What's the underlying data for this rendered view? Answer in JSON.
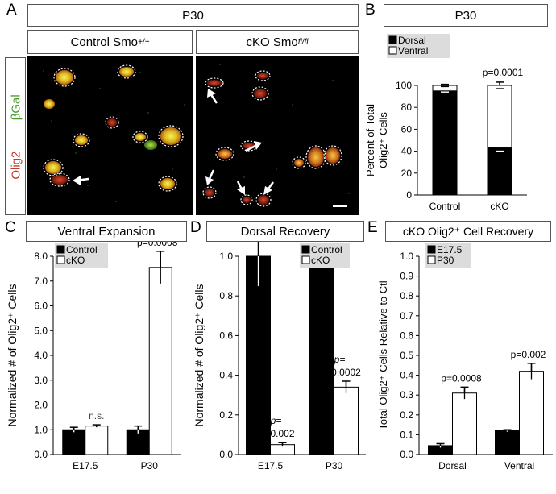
{
  "figure": {
    "panels": {
      "a": {
        "letter": "A",
        "age": "P30",
        "control_title": "Control Smo",
        "control_sup": "+/+",
        "cko_title": "cKO Smo",
        "cko_sup": "fl/fl",
        "marker_green": "βGal",
        "marker_red": "Olig2"
      },
      "b": {
        "letter": "B",
        "title": "P30"
      },
      "c": {
        "letter": "C",
        "title": "Ventral Expansion"
      },
      "d": {
        "letter": "D",
        "title": "Dorsal Recovery"
      },
      "e": {
        "letter": "E",
        "title": "cKO Olig2⁺ Cell Recovery"
      }
    }
  },
  "chart_data": [
    {
      "id": "B",
      "type": "bar",
      "stacked": true,
      "categories": [
        "Control",
        "cKO"
      ],
      "series": [
        {
          "name": "Dorsal",
          "color": "#000000",
          "values": [
            95,
            43
          ],
          "errors": [
            1,
            3
          ]
        },
        {
          "name": "Ventral",
          "color": "#ffffff",
          "values": [
            5,
            57
          ],
          "errors": [
            1,
            3
          ]
        }
      ],
      "ylabel": "Percent of Total Olig2⁺ Cells",
      "ylim": [
        0,
        100
      ],
      "yticks": [
        "0",
        "20",
        "40",
        "60",
        "80",
        "100"
      ],
      "annotations": [
        {
          "category": "cKO",
          "text": "p=0.0001"
        }
      ],
      "legend": "top-left"
    },
    {
      "id": "C",
      "type": "bar",
      "categories": [
        "E17.5",
        "P30"
      ],
      "series": [
        {
          "name": "Control",
          "color": "#000000",
          "values": [
            1.0,
            1.0
          ],
          "errors": [
            0.1,
            0.15
          ]
        },
        {
          "name": "cKO",
          "color": "#ffffff",
          "values": [
            1.15,
            7.55
          ],
          "errors": [
            0.05,
            0.65
          ]
        }
      ],
      "ylabel": "Normalized # of Olig2⁺ Cells",
      "ylim": [
        0,
        8.0
      ],
      "yticks": [
        "0.0",
        "1.0",
        "2.0",
        "3.0",
        "4.0",
        "5.0",
        "6.0",
        "7.0",
        "8.0"
      ],
      "annotations": [
        {
          "category": "E17.5",
          "text": "n.s."
        },
        {
          "category": "P30",
          "text": "p=0.0008"
        }
      ],
      "legend": "top-left"
    },
    {
      "id": "D",
      "type": "bar",
      "categories": [
        "E17.5",
        "P30"
      ],
      "series": [
        {
          "name": "Control",
          "color": "#000000",
          "values": [
            1.0,
            1.0
          ],
          "errors": [
            0.15,
            0.04
          ]
        },
        {
          "name": "cKO",
          "color": "#ffffff",
          "values": [
            0.05,
            0.34
          ],
          "errors": [
            0.01,
            0.03
          ]
        }
      ],
      "ylabel": "Normalized # of Olig2⁺ Cells",
      "ylim": [
        0,
        1.0
      ],
      "yticks": [
        "0.0",
        "0.2",
        "0.4",
        "0.6",
        "0.8",
        "1.0"
      ],
      "annotations": [
        {
          "category": "E17.5",
          "text_top": "p=",
          "text_bottom": "0.002"
        },
        {
          "category": "P30",
          "text_top": "p=",
          "text_bottom": "0.0002"
        }
      ],
      "legend": "top-right"
    },
    {
      "id": "E",
      "type": "bar",
      "categories": [
        "Dorsal",
        "Ventral"
      ],
      "series": [
        {
          "name": "E17.5",
          "color": "#000000",
          "values": [
            0.045,
            0.12
          ],
          "errors": [
            0.01,
            0.005
          ]
        },
        {
          "name": "P30",
          "color": "#ffffff",
          "values": [
            0.31,
            0.42
          ],
          "errors": [
            0.03,
            0.04
          ]
        }
      ],
      "ylabel": "Total Olig2⁺ Cells Relative to Ctl",
      "ylim": [
        0,
        1.0
      ],
      "yticks": [
        "0.0",
        "0.1",
        "0.2",
        "0.3",
        "0.4",
        "0.5",
        "0.6",
        "0.7",
        "0.8",
        "0.9",
        "1.0"
      ],
      "annotations": [
        {
          "category": "Dorsal",
          "text": "p=0.0008"
        },
        {
          "category": "Ventral",
          "text": "p=0.002"
        }
      ],
      "legend": "top-left"
    }
  ]
}
